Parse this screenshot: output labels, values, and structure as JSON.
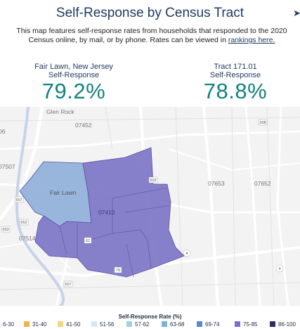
{
  "header": {
    "title": "Self-Response by Census Tract",
    "share_icon": "share-icon",
    "description_text": "This map features self-response rates from households that responded to the 2020 Census online, by mail, or by phone. Rates can be viewed in",
    "rankings_link": "rankings here."
  },
  "stats": [
    {
      "label_line1": "Fair Lawn, New Jersey",
      "label_line2": "Self-Response",
      "value": "79.2%"
    },
    {
      "label_line1": "Tract 171.01",
      "label_line2": "Self-Response",
      "value": "78.8%"
    }
  ],
  "map": {
    "place_labels": {
      "glen_rock": "Glen Rock",
      "fair_lawn": "Fair Lawn",
      "zip_07452": "07452",
      "zip_07410": "07410",
      "zip_07653": "07653",
      "zip_07652": "07652",
      "zip_07507": "07507",
      "zip_07514": "07514",
      "frag_06": "06"
    },
    "road_shields": [
      "208",
      "507",
      "653",
      "652",
      "62",
      "4",
      "79",
      "502",
      "507",
      "4"
    ],
    "colors": {
      "fair_lawn_tract": "#8eaed9",
      "selected_tracts": "#7a72c4",
      "border": "#5a52a8"
    }
  },
  "legend": {
    "title": "Self-Response Rate (%)",
    "items": [
      {
        "label": "6-30",
        "color": "#e8923a"
      },
      {
        "label": "31-40",
        "color": "#f1b44c"
      },
      {
        "label": "41-50",
        "color": "#f5d77a"
      },
      {
        "label": "51-56",
        "color": "#d7e8f1"
      },
      {
        "label": "57-62",
        "color": "#a7cce3"
      },
      {
        "label": "63-68",
        "color": "#7fb0d6"
      },
      {
        "label": "69-74",
        "color": "#5b87c2"
      },
      {
        "label": "75-85",
        "color": "#7a72c4"
      },
      {
        "label": "86-100",
        "color": "#2a2e6a"
      }
    ]
  }
}
